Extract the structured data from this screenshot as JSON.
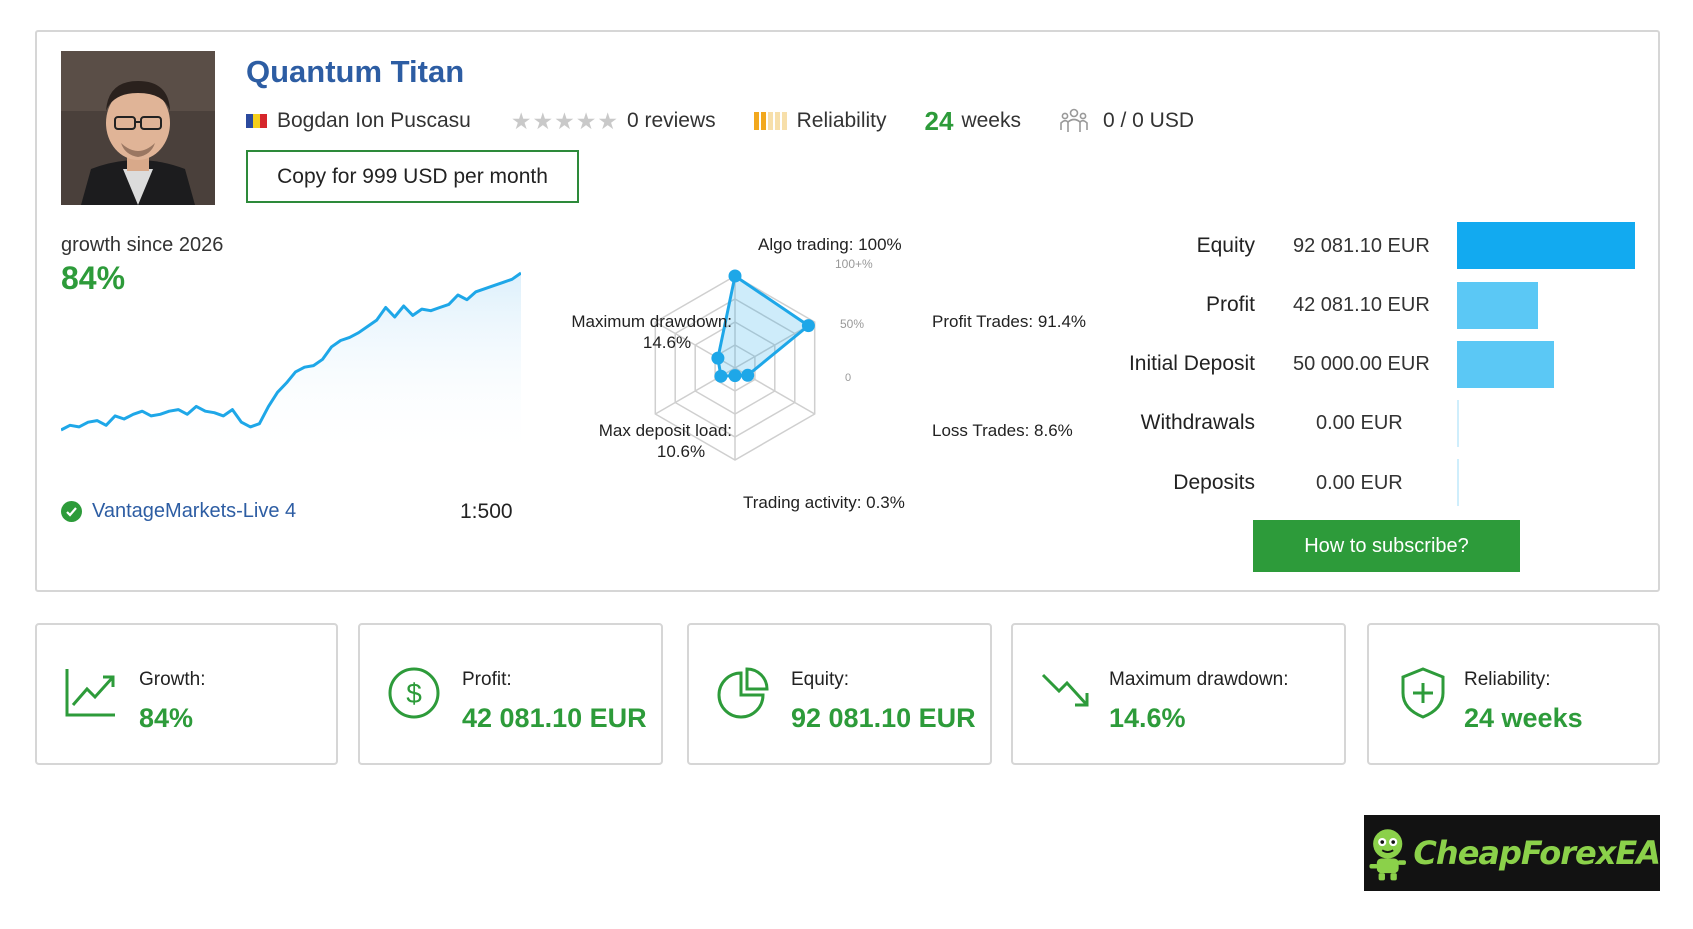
{
  "profile": {
    "title": "Quantum Titan",
    "author": "Bogdan Ion Puscasu",
    "reviews": "0 reviews",
    "rating_stars": 0,
    "reliability_label": "Reliability",
    "weeks_number": "24",
    "weeks_unit": "weeks",
    "subscribers": "0 / 0 USD",
    "copy_button": "Copy for 999 USD per month"
  },
  "growth": {
    "label": "growth since 2026",
    "value": "84%",
    "server": "VantageMarkets-Live 4",
    "leverage": "1:500"
  },
  "radar": {
    "algo": "Algo trading: 100%",
    "profit_trades": "Profit Trades: 91.4%",
    "loss_trades": "Loss Trades: 8.6%",
    "trading_activity": "Trading activity: 0.3%",
    "max_deposit_load_1": "Max deposit load:",
    "max_deposit_load_2": "10.6%",
    "max_drawdown_1": "Maximum drawdown:",
    "max_drawdown_2": "14.6%",
    "tick_100": "100+%",
    "tick_50": "50%",
    "tick_0": "0"
  },
  "stats": {
    "equity_label": "Equity",
    "equity_value": "92 081.10 EUR",
    "profit_label": "Profit",
    "profit_value": "42 081.10 EUR",
    "initial_label": "Initial Deposit",
    "initial_value": "50 000.00 EUR",
    "withdrawals_label": "Withdrawals",
    "withdrawals_value": "0.00 EUR",
    "deposits_label": "Deposits",
    "deposits_value": "0.00 EUR",
    "subscribe_button": "How to subscribe?"
  },
  "cards": {
    "growth_label": "Growth:",
    "growth_value": "84%",
    "profit_label": "Profit:",
    "profit_value": "42 081.10 EUR",
    "equity_label": "Equity:",
    "equity_value": "92 081.10 EUR",
    "drawdown_label": "Maximum drawdown:",
    "drawdown_value": "14.6%",
    "reliability_label": "Reliability:",
    "reliability_value": "24 weeks"
  },
  "logo": {
    "text": "CheapForexEA"
  },
  "colors": {
    "accent_green": "#2d9b3a",
    "title_blue": "#2d5da3",
    "chart_blue": "#1ea7e8"
  },
  "chart_data": [
    {
      "type": "line",
      "title": "",
      "y": [
        0.0,
        0.03,
        0.02,
        0.05,
        0.06,
        0.03,
        0.09,
        0.07,
        0.1,
        0.12,
        0.09,
        0.1,
        0.12,
        0.13,
        0.1,
        0.15,
        0.12,
        0.11,
        0.09,
        0.13,
        0.05,
        0.02,
        0.04,
        0.15,
        0.24,
        0.3,
        0.37,
        0.4,
        0.41,
        0.45,
        0.53,
        0.57,
        0.59,
        0.62,
        0.66,
        0.7,
        0.78,
        0.72,
        0.79,
        0.73,
        0.77,
        0.76,
        0.78,
        0.8,
        0.86,
        0.83,
        0.88,
        0.9,
        0.92,
        0.94,
        0.96,
        1.0
      ],
      "color": "#1ea7e8"
    },
    {
      "type": "radar",
      "axes": [
        "Algo trading",
        "Profit Trades",
        "Loss Trades",
        "Trading activity",
        "Max deposit load",
        "Maximum drawdown"
      ],
      "values": [
        100,
        91.4,
        8.6,
        0.3,
        10.6,
        14.6
      ],
      "rmax": 100
    },
    {
      "type": "bar",
      "orientation": "horizontal",
      "categories": [
        "Equity",
        "Profit",
        "Initial Deposit",
        "Withdrawals",
        "Deposits"
      ],
      "values": [
        92081.1,
        42081.1,
        50000.0,
        0.0,
        0.0
      ],
      "unit": "EUR"
    }
  ]
}
